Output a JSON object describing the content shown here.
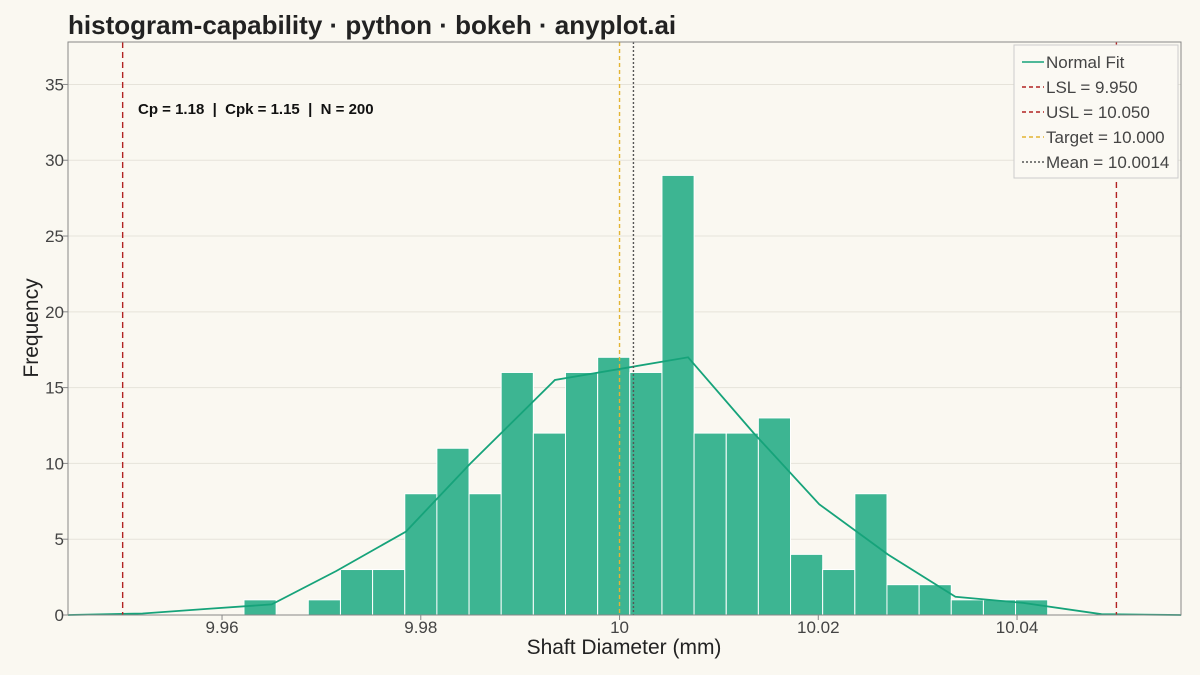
{
  "chart_data": {
    "type": "bar",
    "title": "histogram-capability · python · bokeh · anyplot.ai",
    "xlabel": "Shaft Diameter (mm)",
    "ylabel": "Frequency",
    "xlim": [
      9.9445,
      10.0565
    ],
    "ylim": [
      0,
      37.8
    ],
    "x_ticks": [
      {
        "value": 9.96,
        "label": "9.96"
      },
      {
        "value": 9.98,
        "label": "9.98"
      },
      {
        "value": 10.0,
        "label": "10"
      },
      {
        "value": 10.02,
        "label": "10.02"
      },
      {
        "value": 10.04,
        "label": "10.04"
      }
    ],
    "y_ticks": [
      {
        "value": 0,
        "label": "0"
      },
      {
        "value": 5,
        "label": "5"
      },
      {
        "value": 10,
        "label": "10"
      },
      {
        "value": 15,
        "label": "15"
      },
      {
        "value": 20,
        "label": "20"
      },
      {
        "value": 25,
        "label": "25"
      },
      {
        "value": 30,
        "label": "30"
      },
      {
        "value": 35,
        "label": "35"
      }
    ],
    "grid": true,
    "bin_width": 0.003235,
    "bins": [
      {
        "start": 9.96221,
        "count": 1
      },
      {
        "start": 9.96545,
        "count": 0
      },
      {
        "start": 9.96868,
        "count": 1
      },
      {
        "start": 9.97192,
        "count": 3
      },
      {
        "start": 9.97515,
        "count": 3
      },
      {
        "start": 9.97839,
        "count": 8
      },
      {
        "start": 9.98162,
        "count": 11
      },
      {
        "start": 9.98486,
        "count": 8
      },
      {
        "start": 9.98809,
        "count": 16
      },
      {
        "start": 9.99133,
        "count": 12
      },
      {
        "start": 9.99456,
        "count": 16
      },
      {
        "start": 9.9978,
        "count": 17
      },
      {
        "start": 10.00103,
        "count": 16
      },
      {
        "start": 10.00427,
        "count": 29
      },
      {
        "start": 10.0075,
        "count": 12
      },
      {
        "start": 10.01074,
        "count": 12
      },
      {
        "start": 10.01397,
        "count": 13
      },
      {
        "start": 10.01721,
        "count": 4
      },
      {
        "start": 10.02044,
        "count": 3
      },
      {
        "start": 10.02368,
        "count": 8
      },
      {
        "start": 10.02691,
        "count": 2
      },
      {
        "start": 10.03015,
        "count": 2
      },
      {
        "start": 10.03338,
        "count": 1
      },
      {
        "start": 10.03662,
        "count": 1
      },
      {
        "start": 10.03985,
        "count": 1
      }
    ],
    "normal_fit": {
      "x": [
        9.9445,
        9.952,
        9.9585,
        9.965,
        9.9715,
        9.9785,
        9.985,
        9.9935,
        10.0069,
        10.0135,
        10.0201,
        10.027,
        10.0338,
        10.0406,
        10.0485,
        10.0565
      ],
      "y": [
        0,
        0.1,
        0.4,
        0.7,
        2.9,
        5.5,
        10.0,
        15.5,
        17.0,
        12.0,
        7.3,
        4.0,
        1.2,
        0.8,
        0.05,
        0
      ]
    },
    "reference_lines": [
      {
        "name": "LSL",
        "value": 9.95,
        "color": "#B22222",
        "dash": "6,4"
      },
      {
        "name": "USL",
        "value": 10.05,
        "color": "#B22222",
        "dash": "6,4"
      },
      {
        "name": "Target",
        "value": 10.0,
        "color": "#E3B433",
        "dash": "4,3"
      },
      {
        "name": "Mean",
        "value": 10.0014,
        "color": "#555555",
        "dash": "2,2"
      }
    ],
    "legend": {
      "position": "top-right",
      "entries": [
        {
          "label": "Normal Fit",
          "color": "#16A37A",
          "dash": ""
        },
        {
          "label": "LSL = 9.950",
          "color": "#B22222",
          "dash": "4,3"
        },
        {
          "label": "USL = 10.050",
          "color": "#B22222",
          "dash": "4,3"
        },
        {
          "label": "Target = 10.000",
          "color": "#E3B433",
          "dash": "4,3"
        },
        {
          "label": "Mean = 10.0014",
          "color": "#555555",
          "dash": "2,2"
        }
      ]
    },
    "annotation": "Cp = 1.18  |  Cpk = 1.15  |  N = 200",
    "colors": {
      "bar": "#3DB592",
      "bar_edge": "#FFFFFF",
      "fit_line": "#16A37A",
      "background": "#FAF8F1",
      "grid": "#E6E3DA",
      "frame": "#888888"
    }
  }
}
